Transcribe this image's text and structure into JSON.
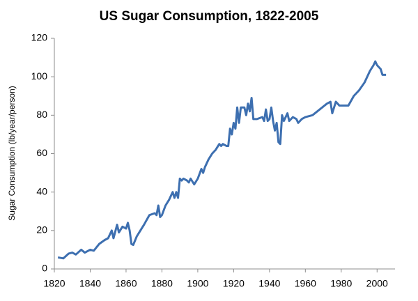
{
  "chart_data": {
    "type": "line",
    "title": "US Sugar Consumption, 1822-2005",
    "y_label": "Sugar Consumption (lb/year/person)",
    "xlim": [
      1820,
      2010
    ],
    "xticks": [
      1820,
      1840,
      1860,
      1880,
      1900,
      1920,
      1940,
      1960,
      1980,
      2000
    ],
    "ylim": [
      0,
      120
    ],
    "yticks": [
      0,
      20,
      40,
      60,
      80,
      100,
      120
    ],
    "grid": false,
    "x": [
      1822,
      1825,
      1828,
      1830,
      1832,
      1835,
      1837,
      1840,
      1842,
      1845,
      1848,
      1850,
      1852,
      1853,
      1855,
      1856,
      1858,
      1860,
      1861,
      1862,
      1863,
      1864,
      1866,
      1868,
      1870,
      1873,
      1876,
      1877,
      1878,
      1879,
      1880,
      1882,
      1884,
      1886,
      1887,
      1888,
      1889,
      1890,
      1891,
      1892,
      1894,
      1895,
      1896,
      1898,
      1900,
      1902,
      1903,
      1904,
      1906,
      1908,
      1910,
      1912,
      1913,
      1914,
      1916,
      1917,
      1918,
      1919,
      1920,
      1921,
      1922,
      1923,
      1924,
      1926,
      1927,
      1928,
      1929,
      1930,
      1931,
      1933,
      1936,
      1937,
      1938,
      1939,
      1940,
      1941,
      1942,
      1943,
      1944,
      1945,
      1946,
      1947,
      1948,
      1949,
      1950,
      1951,
      1953,
      1955,
      1956,
      1958,
      1960,
      1964,
      1968,
      1972,
      1974,
      1975,
      1977,
      1979,
      1982,
      1984,
      1987,
      1990,
      1993,
      1996,
      1998,
      1999,
      2000,
      2001,
      2002,
      2003,
      2005
    ],
    "series": [
      {
        "name": "US sugar consumption",
        "color": "#3d6fb0",
        "values": [
          6,
          5.5,
          8,
          8.5,
          7.5,
          10,
          8.5,
          10,
          9.5,
          13,
          15,
          16,
          20,
          16,
          23,
          19,
          22,
          21,
          24,
          20,
          13,
          12.5,
          17,
          20,
          23,
          28,
          29,
          28,
          33,
          27,
          28,
          33,
          36,
          40,
          37,
          40,
          37,
          47,
          46,
          47,
          46,
          45,
          47,
          44,
          47,
          52,
          50,
          53,
          57,
          60,
          62,
          65,
          64,
          65,
          64,
          64,
          73,
          70,
          76,
          73,
          84,
          76,
          84,
          84,
          80,
          86,
          82,
          89,
          78,
          78,
          79,
          77,
          83,
          77,
          78,
          84,
          77,
          72,
          76,
          66,
          65,
          80,
          77,
          79,
          81,
          77,
          79,
          78,
          76,
          78,
          79,
          80,
          83,
          86,
          87,
          81,
          87,
          85,
          85,
          85,
          90,
          93,
          97,
          103,
          106,
          108,
          106,
          105,
          104,
          101,
          101
        ]
      }
    ]
  }
}
